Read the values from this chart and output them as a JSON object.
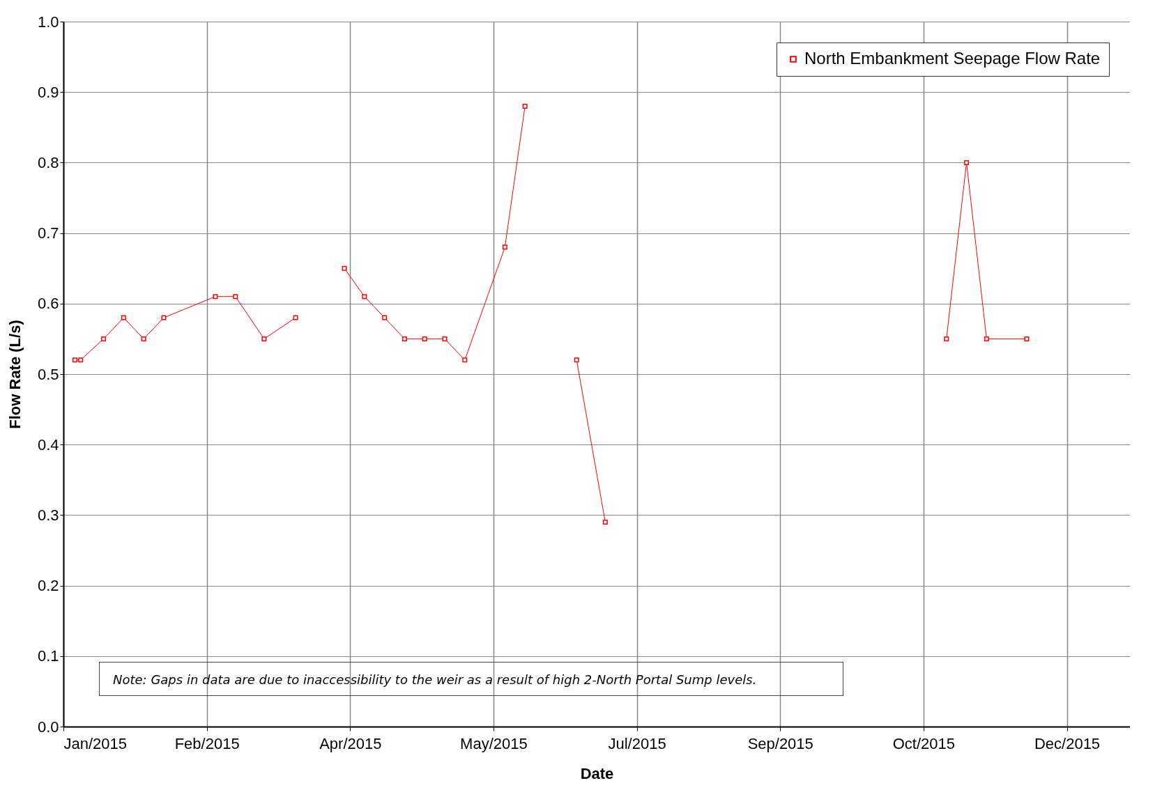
{
  "chart_data": {
    "type": "line",
    "xlabel": "Date",
    "ylabel": "Flow Rate (L/s)",
    "x": [
      "2015-01-05",
      "2015-01-07",
      "2015-01-15",
      "2015-01-22",
      "2015-01-29",
      "2015-02-05",
      "2015-02-23",
      "2015-03-02",
      "2015-03-12",
      "2015-03-23",
      "2015-04-01",
      "2015-04-09",
      "2015-04-16",
      "2015-04-23",
      "2015-04-30",
      "2015-05-07",
      "2015-05-14",
      "2015-05-21",
      "2015-06-04",
      "2015-06-11",
      "2015-06-20",
      "2015-06-29",
      "2015-07-09",
      "2015-08-20",
      "2015-11-05",
      "2015-11-12",
      "2015-11-19",
      "2015-12-03"
    ],
    "series": [
      {
        "name": "North Embankment Seepage Flow Rate",
        "color": "#ff0000",
        "values": [
          0.52,
          0.52,
          0.55,
          0.58,
          0.55,
          0.58,
          0.61,
          0.61,
          0.55,
          0.58,
          null,
          0.65,
          0.61,
          0.58,
          0.55,
          0.55,
          0.55,
          0.52,
          0.68,
          0.88,
          null,
          0.52,
          0.29,
          null,
          0.55,
          0.8,
          0.55,
          0.55
        ]
      }
    ],
    "xlim": [
      "2015-01-01",
      "2016-01-08"
    ],
    "xticks": [
      {
        "value": "2015-01-01",
        "label": "Jan/2015"
      },
      {
        "value": "2015-02-20",
        "label": "Feb/2015"
      },
      {
        "value": "2015-04-11",
        "label": "Apr/2015"
      },
      {
        "value": "2015-05-31",
        "label": "May/2015"
      },
      {
        "value": "2015-07-20",
        "label": "Jul/2015"
      },
      {
        "value": "2015-09-08",
        "label": "Sep/2015"
      },
      {
        "value": "2015-10-28",
        "label": "Oct/2015"
      },
      {
        "value": "2015-12-17",
        "label": "Dec/2015"
      }
    ],
    "ylim": [
      0,
      1
    ],
    "yticks": [
      {
        "value": 0,
        "label": "0.0"
      },
      {
        "value": 0.1,
        "label": "0.1"
      },
      {
        "value": 0.2,
        "label": "0.2"
      },
      {
        "value": 0.3,
        "label": "0.3"
      },
      {
        "value": 0.4,
        "label": "0.4"
      },
      {
        "value": 0.5,
        "label": "0.5"
      },
      {
        "value": 0.6,
        "label": "0.6"
      },
      {
        "value": 0.7,
        "label": "0.7"
      },
      {
        "value": 0.8,
        "label": "0.8"
      },
      {
        "value": 0.9,
        "label": "0.9"
      },
      {
        "value": 1,
        "label": "1.0"
      }
    ],
    "grid": true,
    "legend": "top right",
    "marker": "square",
    "line_style": "solid",
    "annotations": [
      "Note: Gaps in data are due to inaccessibility to the weir as a result of high 2-North Portal Sump levels."
    ]
  }
}
